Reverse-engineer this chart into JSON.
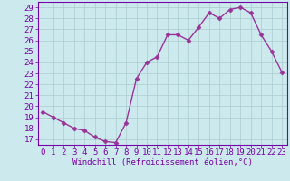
{
  "x": [
    0,
    1,
    2,
    3,
    4,
    5,
    6,
    7,
    8,
    9,
    10,
    11,
    12,
    13,
    14,
    15,
    16,
    17,
    18,
    19,
    20,
    21,
    22,
    23
  ],
  "y": [
    19.5,
    19.0,
    18.5,
    18.0,
    17.8,
    17.2,
    16.8,
    16.7,
    18.5,
    22.5,
    24.0,
    24.5,
    26.5,
    26.5,
    26.0,
    27.2,
    28.5,
    28.0,
    28.8,
    29.0,
    28.5,
    26.5,
    25.0,
    23.1
  ],
  "line_color": "#993399",
  "marker": "D",
  "marker_size": 2.5,
  "bg_color": "#cce9ee",
  "grid_color": "#aacccc",
  "xlabel": "Windchill (Refroidissement éolien,°C)",
  "ylim": [
    16.5,
    29.5
  ],
  "xlim": [
    -0.5,
    23.5
  ],
  "yticks": [
    17,
    18,
    19,
    20,
    21,
    22,
    23,
    24,
    25,
    26,
    27,
    28,
    29
  ],
  "xticks": [
    0,
    1,
    2,
    3,
    4,
    5,
    6,
    7,
    8,
    9,
    10,
    11,
    12,
    13,
    14,
    15,
    16,
    17,
    18,
    19,
    20,
    21,
    22,
    23
  ],
  "axis_color": "#7700aa",
  "xlabel_fontsize": 6.5,
  "tick_fontsize": 6.5,
  "line_width": 1.0
}
